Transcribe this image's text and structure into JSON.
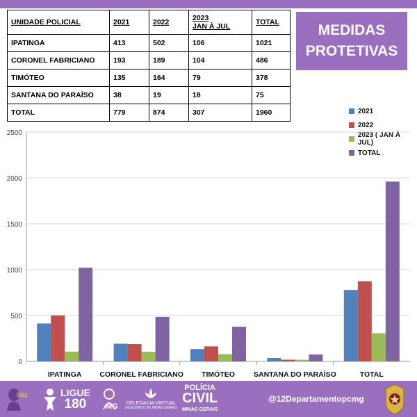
{
  "title": {
    "line1": "MEDIDAS",
    "line2": "PROTETIVAS"
  },
  "table": {
    "headers": {
      "unit": "UNIDADE   POLICIAL",
      "y2021": "2021",
      "y2022": "2022",
      "y2023_l1": "2023",
      "y2023_l2": "JAN À JUL",
      "total": "TOTAL"
    },
    "rows": [
      {
        "name": "IPATINGA",
        "v2021": "413",
        "v2022": "502",
        "v2023": "106",
        "total": "1021"
      },
      {
        "name": "CORONEL FABRICIANO",
        "v2021": "193",
        "v2022": "189",
        "v2023": "104",
        "total": "486"
      },
      {
        "name": "TIMÓTEO",
        "v2021": "135",
        "v2022": "164",
        "v2023": "79",
        "total": "378"
      },
      {
        "name": "SANTANA DO PARAÍSO",
        "v2021": "38",
        "v2022": "19",
        "v2023": "18",
        "total": "75"
      },
      {
        "name": "TOTAL",
        "v2021": "779",
        "v2022": "874",
        "v2023": "307",
        "total": "1960"
      }
    ]
  },
  "chart_data": {
    "type": "bar",
    "categories": [
      "IPATINGA",
      "CORONEL FABRICIANO",
      "TIMÓTEO",
      "SANTANA DO PARAÍSO",
      "TOTAL"
    ],
    "series": [
      {
        "name": "2021",
        "color": "#4f81bd",
        "values": [
          413,
          193,
          135,
          38,
          779
        ]
      },
      {
        "name": "2022",
        "color": "#c0504d",
        "values": [
          502,
          189,
          164,
          19,
          874
        ]
      },
      {
        "name": "2023 ( JAN À JUL)",
        "color": "#9bbb59",
        "values": [
          106,
          104,
          79,
          18,
          307
        ]
      },
      {
        "name": "TOTAL",
        "color": "#8064a2",
        "values": [
          1021,
          486,
          378,
          75,
          1960
        ]
      }
    ],
    "ylim": [
      0,
      2500
    ],
    "yticks": [
      0,
      500,
      1000,
      1500,
      2000,
      2500
    ],
    "ytick_labels": [
      "0",
      "500",
      "1000",
      "1500",
      "2000",
      "2500"
    ],
    "grid": true,
    "legend": "top-right"
  },
  "footer": {
    "lilas": "lilás",
    "ligue": "LIGUE",
    "ligue_num": "180",
    "mg": "MG",
    "delegacia": "DELEGACIA VIRTUAL",
    "delegacia_sub": "DO ESTADO DE MINAS GERAIS",
    "policia": "POLÍCIA",
    "civil": "CIVIL",
    "minas": "MINAS GERAIS",
    "handle": "@12Departamentopcmg"
  },
  "colors": {
    "purple": "#9b6fbf"
  }
}
